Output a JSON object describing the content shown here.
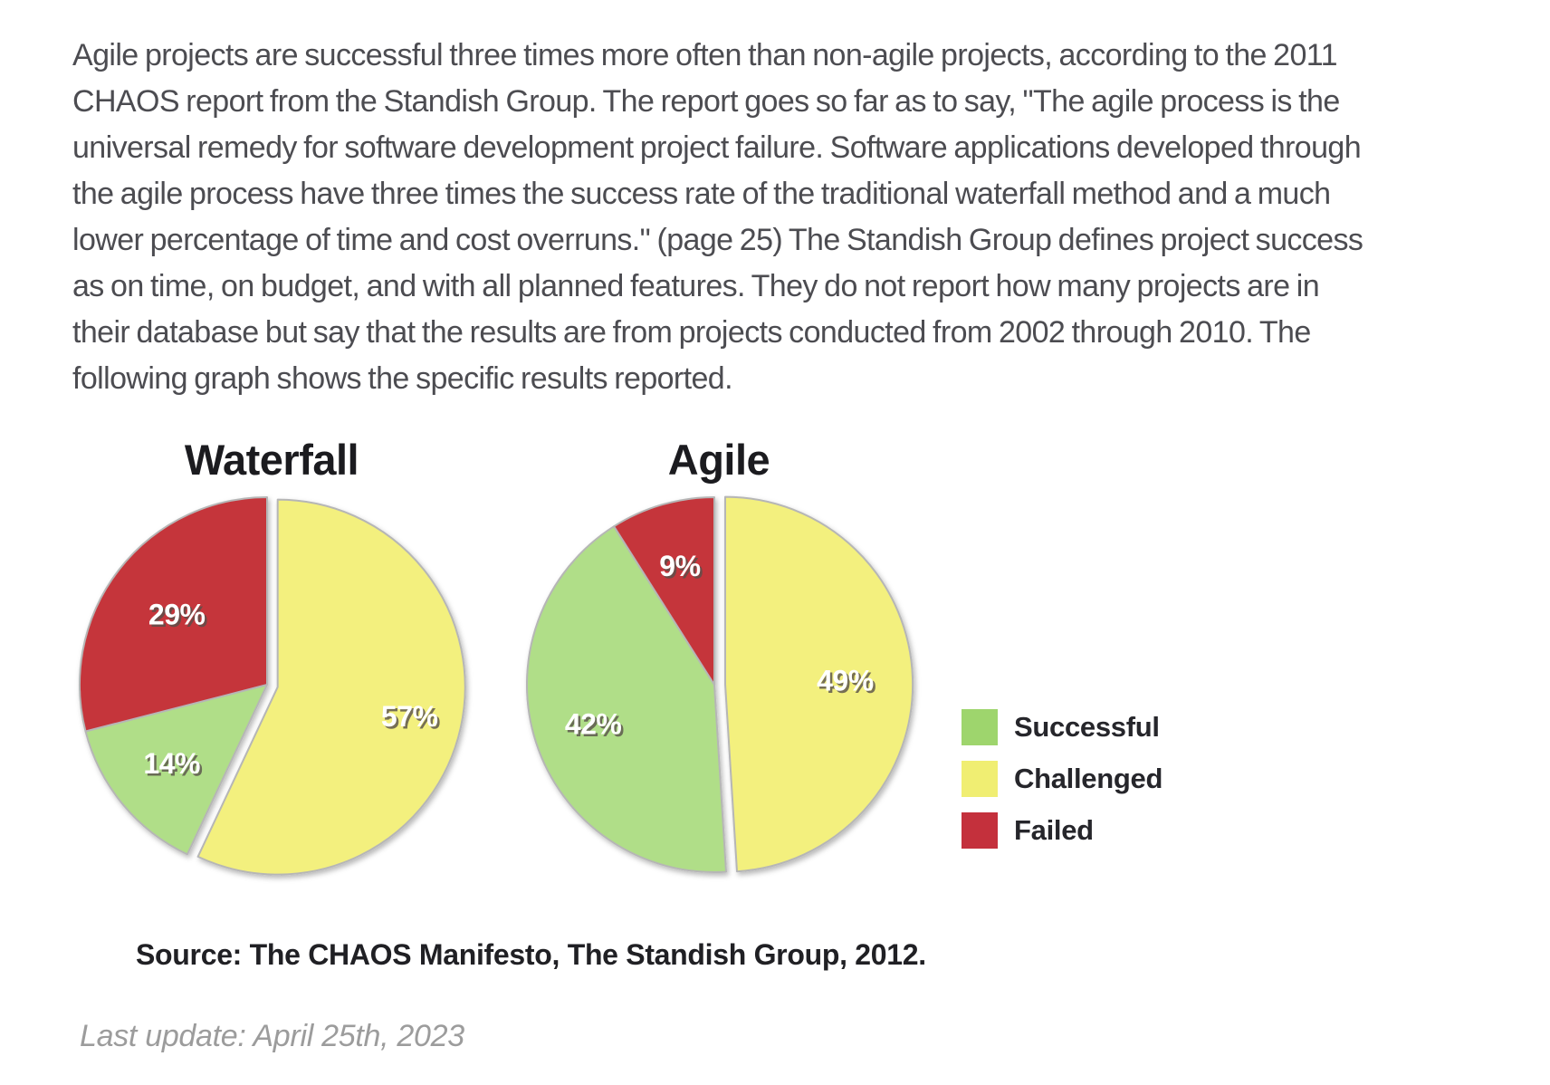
{
  "page": {
    "paragraph_lines": [
      "Agile projects are successful three times more often than non-agile projects, according to the 2011",
      "CHAOS report from the Standish Group. The report goes so far as to say, \"The agile process is the",
      "universal remedy for software development project failure. Software applications developed through",
      "the agile process have three times the success rate of the traditional waterfall method and a much",
      "lower percentage of time and cost overruns.\" (page 25) The Standish Group defines project success",
      "as on time, on budget, and with all planned features. They do not report how many projects are in",
      "their database but say that the results are from projects conducted from 2002 through 2010. The",
      "following graph shows the specific results reported."
    ],
    "source_note": "Source: The CHAOS Manifesto, The Standish Group, 2012.",
    "last_update": "Last update: April 25th, 2023"
  },
  "legend": {
    "items": [
      {
        "label": "Successful",
        "color": "#9ed56d"
      },
      {
        "label": "Challenged",
        "color": "#f0ee72"
      },
      {
        "label": "Failed",
        "color": "#c4303c"
      }
    ]
  },
  "chart_data": [
    {
      "type": "pie",
      "title": "Waterfall",
      "unit": "percent",
      "start_angle": "12-oclock",
      "direction": "clockwise",
      "slices": [
        {
          "label": "Challenged",
          "value": 57,
          "color": "#f3f07e",
          "exploded": true,
          "label_r": 0.72
        },
        {
          "label": "Successful",
          "value": 14,
          "color": "#b0de88",
          "exploded": false,
          "label_r": 0.66
        },
        {
          "label": "Failed",
          "value": 29,
          "color": "#c5343b",
          "exploded": false,
          "label_r": 0.61
        }
      ]
    },
    {
      "type": "pie",
      "title": "Agile",
      "unit": "percent",
      "start_angle": "12-oclock",
      "direction": "clockwise",
      "slices": [
        {
          "label": "Challenged",
          "value": 49,
          "color": "#f3f07e",
          "exploded": true,
          "label_r": 0.64
        },
        {
          "label": "Successful",
          "value": 42,
          "color": "#b0de88",
          "exploded": false,
          "label_r": 0.68
        },
        {
          "label": "Failed",
          "value": 9,
          "color": "#c5343b",
          "exploded": false,
          "label_r": 0.66
        }
      ]
    }
  ]
}
